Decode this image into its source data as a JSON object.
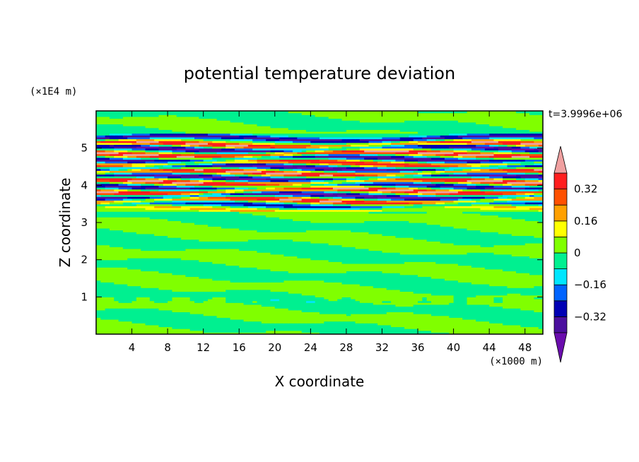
{
  "chart_data": {
    "type": "heatmap",
    "title": "potential temperature deviation",
    "xlabel": "X coordinate",
    "ylabel": "Z coordinate",
    "x_unit": "(×1000 m)",
    "y_unit": "(×1E4 m)",
    "time_label": "t=3.9996e+06",
    "xlim": [
      0,
      50
    ],
    "ylim": [
      0,
      6
    ],
    "x_ticks": [
      4,
      8,
      12,
      16,
      20,
      24,
      28,
      32,
      36,
      40,
      44,
      48
    ],
    "x_tick_labels": [
      "4",
      "8",
      "12",
      "16",
      "20",
      "24",
      "28",
      "32",
      "36",
      "40",
      "44",
      "48"
    ],
    "y_ticks": [
      1,
      2,
      3,
      4,
      5
    ],
    "y_tick_labels": [
      "1",
      "2",
      "3",
      "4",
      "5"
    ],
    "colorbar": {
      "levels": [
        -0.48,
        -0.4,
        -0.32,
        -0.24,
        -0.16,
        -0.08,
        0,
        0.08,
        0.16,
        0.24,
        0.32,
        0.4,
        0.48
      ],
      "colors": [
        "#6a0dad",
        "#4b0f9e",
        "#0000b4",
        "#0064ff",
        "#00e6ff",
        "#00f090",
        "#80ff00",
        "#ffff00",
        "#ffa000",
        "#ff5000",
        "#ff1e1e",
        "#f0a0a0"
      ],
      "labeled_values": [
        -0.32,
        -0.16,
        0,
        0.16,
        0.32
      ],
      "labels": [
        "−0.32",
        "−0.16",
        "0",
        "0.16",
        "0.32"
      ],
      "extend": "both"
    },
    "layers": [
      {
        "z_range": [
          0,
          0.8
        ],
        "value": 0.04,
        "desc": "bottom mixed green"
      },
      {
        "z_range": [
          0.8,
          1.0
        ],
        "value": 0.02
      },
      {
        "z_range": [
          1.0,
          3.3
        ],
        "value": -0.02,
        "desc": "banded greens"
      },
      {
        "z_range": [
          3.3,
          5.4
        ],
        "value": 0.0,
        "desc": "strongly banded oscillation"
      },
      {
        "z_range": [
          5.4,
          6.0
        ],
        "value": 0.04
      }
    ],
    "bands": [
      {
        "z": 5.27,
        "value": -0.36
      },
      {
        "z": 5.1,
        "value": 0.42
      },
      {
        "z": 5.0,
        "value": -0.42
      },
      {
        "z": 4.85,
        "value": 0.44
      },
      {
        "z": 4.72,
        "value": -0.4
      },
      {
        "z": 4.6,
        "value": 0.4
      },
      {
        "z": 4.48,
        "value": -0.44
      },
      {
        "z": 4.35,
        "value": 0.44
      },
      {
        "z": 4.22,
        "value": -0.42
      },
      {
        "z": 4.1,
        "value": 0.44
      },
      {
        "z": 3.98,
        "value": -0.36
      },
      {
        "z": 3.86,
        "value": 0.44
      },
      {
        "z": 3.72,
        "value": -0.44
      },
      {
        "z": 3.6,
        "value": 0.42
      },
      {
        "z": 3.48,
        "value": -0.3
      },
      {
        "z": 3.37,
        "value": 0.18
      }
    ]
  }
}
